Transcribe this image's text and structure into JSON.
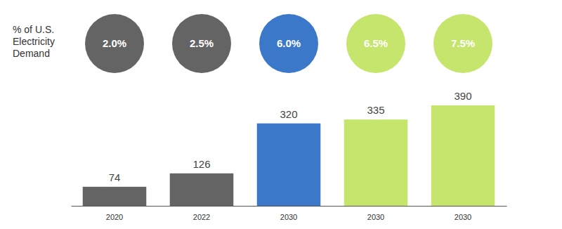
{
  "chart_data": {
    "type": "bar",
    "categories": [
      "2020",
      "2022",
      "2030",
      "2030",
      "2030"
    ],
    "ylim": [
      0,
      390
    ],
    "data_labels": true,
    "tick_labels": "x",
    "series": [
      {
        "type": "bar",
        "values": [
          74,
          126,
          320,
          335,
          390
        ],
        "colors": [
          "#656464",
          "#656464",
          "#3b78c9",
          "#c5e56c",
          "#c5e56c"
        ]
      },
      {
        "name": "% of U.S. Electricity Demand",
        "type": "circle",
        "values": [
          2.0,
          2.5,
          6.0,
          6.5,
          7.5
        ],
        "value_labels": [
          "2.0%",
          "2.5%",
          "6.0%",
          "6.5%",
          "7.5%"
        ],
        "colors": [
          "#656464",
          "#656464",
          "#3b78c9",
          "#c5e56c",
          "#c5e56c"
        ]
      }
    ]
  }
}
